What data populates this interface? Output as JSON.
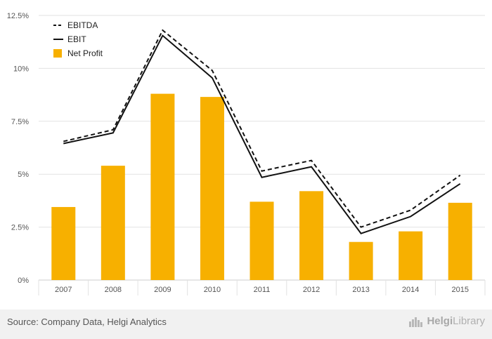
{
  "chart_data": {
    "type": "bar+line",
    "categories": [
      "2007",
      "2008",
      "2009",
      "2010",
      "2011",
      "2012",
      "2013",
      "2014",
      "2015"
    ],
    "series": [
      {
        "name": "EBITDA",
        "kind": "line",
        "style": "dashed",
        "values": [
          6.55,
          7.1,
          11.8,
          9.9,
          5.15,
          5.65,
          2.5,
          3.3,
          4.95
        ]
      },
      {
        "name": "EBIT",
        "kind": "line",
        "style": "solid",
        "values": [
          6.45,
          6.95,
          11.55,
          9.55,
          4.85,
          5.35,
          2.2,
          3.0,
          4.55
        ]
      },
      {
        "name": "Net Profit",
        "kind": "bar",
        "values": [
          3.45,
          5.4,
          8.8,
          8.65,
          3.7,
          4.2,
          1.8,
          2.3,
          3.65
        ]
      }
    ],
    "y_ticks": [
      "0%",
      "2.5%",
      "5%",
      "7.5%",
      "10%",
      "12.5%"
    ],
    "y_tick_values": [
      0,
      2.5,
      5,
      7.5,
      10,
      12.5
    ],
    "ylim": [
      0,
      12.5
    ],
    "legend_position": "top-left",
    "grid": true,
    "colors": {
      "bar": "#f7b000",
      "line": "#111111",
      "grid": "#e2e2e2",
      "axis": "#cccccc"
    }
  },
  "footer": {
    "source": "Source: Company Data, Helgi Analytics",
    "brand_bold": "Helgi",
    "brand_rest": "Library"
  }
}
